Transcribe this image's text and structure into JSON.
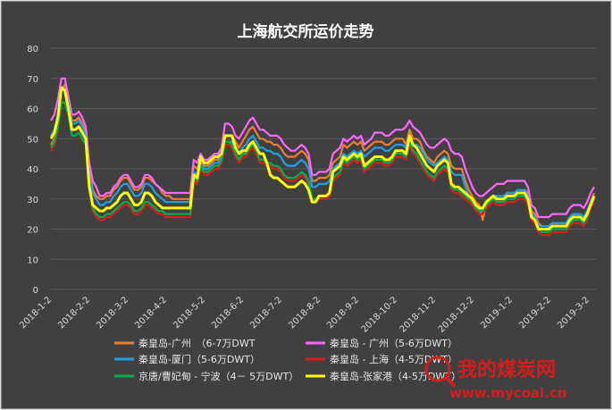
{
  "chart_data": {
    "type": "line",
    "title": "上海航交所运价走势",
    "xlabel": "",
    "ylabel": "",
    "ylim": [
      0,
      80
    ],
    "yticks": [
      0,
      10,
      20,
      30,
      40,
      50,
      60,
      70,
      80
    ],
    "grid": true,
    "legend_position": "bottom",
    "xtick_labels": [
      "2018-1-2",
      "2018-2-2",
      "2018-3-2",
      "2018-4-2",
      "2018-5-2",
      "2018-6-2",
      "2018-7-2",
      "2018-8-2",
      "2018-9-2",
      "2018-10-2",
      "2018-11-2",
      "2018-12-2",
      "2019-1-2",
      "2019-2-2",
      "2019-3-2"
    ],
    "series": [
      {
        "name": "秦皇岛-广州　（6-7万DWT",
        "color": "#ed7d31",
        "values": [
          48,
          50,
          55,
          66,
          68,
          63,
          56,
          56,
          57,
          55,
          52,
          40,
          33,
          31,
          30,
          30,
          31,
          31,
          33,
          34,
          36,
          37,
          37,
          35,
          33,
          33,
          34,
          37,
          37,
          36,
          35,
          34,
          32,
          31,
          31,
          30,
          30,
          30,
          30,
          30,
          30,
          41,
          40,
          43,
          41,
          41,
          42,
          43,
          43,
          45,
          51,
          51,
          51,
          49,
          47,
          49,
          51,
          53,
          54,
          52,
          50,
          50,
          49,
          49,
          48,
          48,
          47,
          45,
          44,
          44,
          44,
          45,
          46,
          45,
          43,
          36,
          36,
          37,
          37,
          37,
          38,
          42,
          43,
          44,
          48,
          47,
          48,
          49,
          48,
          49,
          46,
          47,
          48,
          49,
          49,
          49,
          48,
          48,
          49,
          50,
          50,
          50,
          48,
          53,
          50,
          50,
          49,
          46,
          44,
          43,
          42,
          44,
          45,
          46,
          45,
          41,
          40,
          40,
          40,
          36,
          33,
          31,
          29,
          28,
          23,
          28,
          29,
          30,
          30,
          30,
          30,
          32,
          32,
          32,
          33,
          33,
          33,
          32,
          26,
          25,
          22,
          21,
          21,
          21,
          22,
          22,
          22,
          22,
          22,
          24,
          25,
          25,
          25,
          24,
          26,
          29,
          32
        ]
      },
      {
        "name": "秦皇岛 - 广州（5-6万DWT）",
        "color": "#ff66ff",
        "values": [
          56,
          58,
          63,
          70,
          70,
          64,
          58,
          58,
          59,
          57,
          54,
          42,
          36,
          34,
          31,
          31,
          32,
          32,
          34,
          35,
          37,
          38,
          38,
          36,
          34,
          34,
          35,
          38,
          38,
          37,
          35,
          34,
          33,
          32,
          32,
          32,
          32,
          32,
          32,
          32,
          32,
          43,
          42,
          45,
          43,
          43,
          44,
          45,
          45,
          47,
          55,
          55,
          54,
          51,
          50,
          52,
          54,
          56,
          57,
          55,
          53,
          53,
          52,
          51,
          51,
          51,
          50,
          48,
          47,
          46,
          46,
          47,
          48,
          47,
          45,
          38,
          38,
          39,
          39,
          39,
          40,
          45,
          46,
          47,
          50,
          49,
          50,
          51,
          50,
          51,
          48,
          49,
          50,
          52,
          52,
          52,
          51,
          51,
          52,
          53,
          53,
          53,
          54,
          56,
          54,
          53,
          52,
          50,
          48,
          47,
          47,
          48,
          49,
          50,
          49,
          46,
          45,
          45,
          44,
          40,
          37,
          34,
          32,
          31,
          31,
          32,
          33,
          34,
          35,
          35,
          35,
          36,
          36,
          36,
          36,
          36,
          36,
          34,
          28,
          27,
          24,
          24,
          24,
          24,
          25,
          25,
          25,
          25,
          25,
          27,
          28,
          28,
          28,
          27,
          29,
          32,
          34
        ]
      },
      {
        "name": "秦皇岛-厦门（5-6万DWT）",
        "color": "#1ca1e6",
        "values": [
          51,
          53,
          58,
          66,
          66,
          62,
          55,
          55,
          56,
          54,
          51,
          38,
          32,
          30,
          28,
          28,
          29,
          29,
          31,
          32,
          34,
          35,
          35,
          33,
          31,
          31,
          32,
          35,
          35,
          34,
          32,
          31,
          30,
          29,
          29,
          29,
          29,
          29,
          29,
          29,
          29,
          39,
          38,
          42,
          40,
          40,
          41,
          42,
          42,
          44,
          49,
          49,
          49,
          47,
          45,
          47,
          48,
          50,
          51,
          49,
          47,
          47,
          46,
          46,
          45,
          45,
          44,
          42,
          41,
          41,
          41,
          42,
          43,
          42,
          40,
          34,
          34,
          35,
          35,
          35,
          36,
          40,
          41,
          42,
          45,
          44,
          45,
          46,
          45,
          46,
          44,
          45,
          46,
          47,
          47,
          47,
          46,
          46,
          47,
          48,
          48,
          48,
          47,
          51,
          48,
          48,
          47,
          45,
          43,
          42,
          41,
          42,
          43,
          44,
          43,
          39,
          38,
          38,
          38,
          34,
          31,
          30,
          28,
          27,
          26,
          29,
          30,
          31,
          31,
          31,
          31,
          32,
          32,
          32,
          33,
          33,
          33,
          31,
          25,
          24,
          21,
          21,
          21,
          21,
          22,
          22,
          22,
          22,
          22,
          24,
          25,
          25,
          25,
          24,
          26,
          29,
          31
        ]
      },
      {
        "name": "秦皇岛 - 上海（4-5万DWT）",
        "color": "#e31a1c",
        "values": [
          46,
          48,
          53,
          62,
          62,
          58,
          51,
          51,
          52,
          50,
          48,
          33,
          26,
          24,
          23,
          23,
          24,
          24,
          25,
          26,
          27,
          28,
          28,
          27,
          25,
          25,
          26,
          28,
          28,
          27,
          26,
          25,
          25,
          24,
          24,
          24,
          24,
          24,
          24,
          24,
          24,
          36,
          35,
          40,
          38,
          38,
          39,
          40,
          40,
          42,
          48,
          48,
          47,
          44,
          42,
          44,
          44,
          46,
          47,
          45,
          42,
          42,
          41,
          41,
          40,
          40,
          39,
          37,
          36,
          36,
          36,
          37,
          38,
          37,
          35,
          29,
          29,
          30,
          30,
          30,
          31,
          36,
          37,
          38,
          42,
          41,
          42,
          43,
          42,
          43,
          39,
          40,
          41,
          42,
          42,
          42,
          41,
          41,
          42,
          44,
          44,
          44,
          43,
          48,
          45,
          44,
          42,
          40,
          38,
          37,
          36,
          38,
          39,
          40,
          39,
          33,
          32,
          32,
          31,
          30,
          29,
          28,
          26,
          25,
          25,
          27,
          28,
          29,
          28,
          28,
          28,
          29,
          29,
          29,
          30,
          30,
          30,
          28,
          23,
          22,
          19,
          18,
          18,
          18,
          19,
          19,
          19,
          19,
          19,
          21,
          22,
          22,
          22,
          21,
          23,
          27,
          29
        ]
      },
      {
        "name": "京唐/曹妃甸 - 宁波（4－ 5万DWT）",
        "color": "#00b050",
        "values": [
          47,
          49,
          54,
          62,
          62,
          58,
          51,
          51,
          52,
          50,
          48,
          34,
          27,
          25,
          24,
          24,
          25,
          25,
          26,
          27,
          28,
          29,
          29,
          28,
          26,
          26,
          27,
          29,
          29,
          28,
          27,
          26,
          26,
          25,
          25,
          25,
          25,
          25,
          25,
          25,
          25,
          37,
          36,
          41,
          39,
          39,
          40,
          41,
          41,
          43,
          49,
          49,
          48,
          45,
          43,
          45,
          45,
          47,
          48,
          46,
          43,
          43,
          42,
          42,
          41,
          41,
          40,
          38,
          37,
          37,
          37,
          38,
          39,
          38,
          36,
          30,
          30,
          31,
          31,
          31,
          32,
          37,
          38,
          39,
          43,
          42,
          43,
          44,
          43,
          44,
          40,
          41,
          42,
          43,
          43,
          43,
          42,
          42,
          43,
          45,
          45,
          45,
          44,
          49,
          46,
          45,
          43,
          41,
          39,
          38,
          37,
          39,
          40,
          41,
          40,
          34,
          33,
          33,
          32,
          31,
          30,
          29,
          27,
          26,
          26,
          28,
          29,
          30,
          29,
          29,
          29,
          30,
          30,
          30,
          31,
          31,
          31,
          29,
          24,
          23,
          20,
          19,
          19,
          19,
          20,
          20,
          20,
          20,
          20,
          22,
          23,
          23,
          23,
          22,
          24,
          28,
          30
        ]
      },
      {
        "name": "秦皇岛-张家港（4-5万DWT）",
        "color": "#ffff00",
        "values": [
          50,
          52,
          57,
          67,
          66,
          60,
          53,
          53,
          54,
          52,
          50,
          34,
          28,
          27,
          26,
          26,
          27,
          27,
          28,
          29,
          31,
          32,
          32,
          30,
          28,
          28,
          29,
          32,
          32,
          31,
          29,
          28,
          27,
          27,
          27,
          27,
          27,
          27,
          27,
          27,
          27,
          38,
          37,
          44,
          42,
          42,
          43,
          44,
          44,
          45,
          51,
          51,
          51,
          47,
          45,
          46,
          46,
          48,
          49,
          47,
          45,
          45,
          42,
          38,
          37,
          37,
          36,
          35,
          34,
          34,
          34,
          35,
          36,
          35,
          33,
          29,
          29,
          31,
          31,
          31,
          32,
          39,
          40,
          41,
          44,
          43,
          44,
          45,
          44,
          45,
          41,
          42,
          43,
          44,
          44,
          44,
          43,
          43,
          44,
          46,
          46,
          46,
          45,
          51,
          48,
          47,
          45,
          43,
          41,
          40,
          39,
          41,
          42,
          43,
          42,
          35,
          34,
          34,
          33,
          32,
          31,
          30,
          28,
          27,
          27,
          29,
          30,
          31,
          30,
          30,
          30,
          31,
          31,
          31,
          32,
          32,
          32,
          30,
          24,
          23,
          20,
          20,
          20,
          20,
          21,
          21,
          21,
          21,
          21,
          23,
          24,
          24,
          24,
          23,
          25,
          28,
          31
        ]
      }
    ]
  },
  "watermark": {
    "brand": "我的煤炭网",
    "url": "www.mycoal.cn"
  },
  "colors": {
    "background": "#404040",
    "grid": "#595959",
    "watermark": "#d71c1c"
  }
}
